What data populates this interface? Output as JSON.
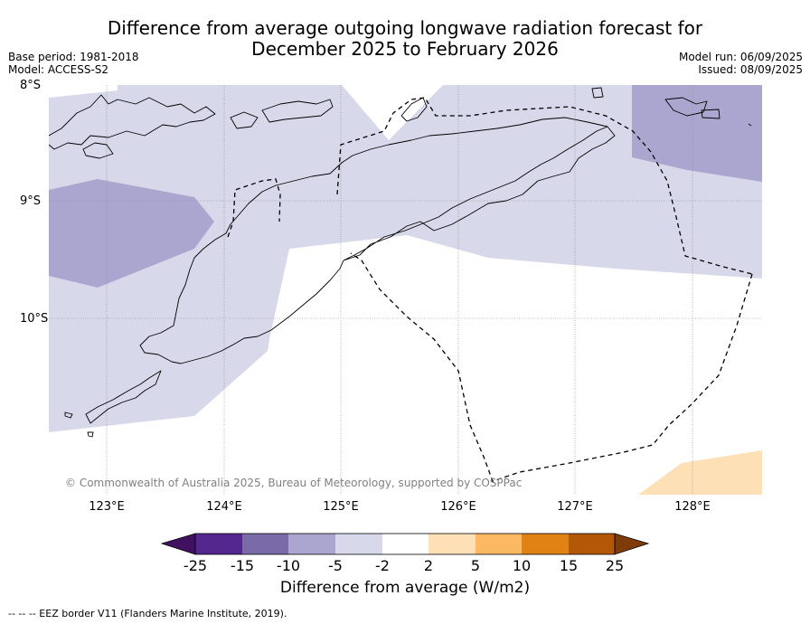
{
  "title_line1": "Difference from average outgoing longwave radiation forecast for",
  "title_line2": "December 2025 to February 2026",
  "base_period": "Base period: 1981-2018",
  "model": "Model: ACCESS-S2",
  "model_run": "Model run: 06/09/2025",
  "issued": "Issued: 08/09/2025",
  "latitude_labels": [
    "8°S",
    "9°S",
    "10°S"
  ],
  "longitude_labels": [
    "123°E",
    "124°E",
    "125°E",
    "126°E",
    "127°E",
    "128°E"
  ],
  "copyright": "© Commonwealth of Australia 2025, Bureau of Meteorology, supported by COSPPac",
  "colorbar": {
    "ticks": [
      "-25",
      "-15",
      "-10",
      "-5",
      "-2",
      "2",
      "5",
      "10",
      "15",
      "25"
    ],
    "colors": [
      "#3f1160",
      "#54278f",
      "#7b6aa8",
      "#aba6cf",
      "#d7d8ea",
      "#ffffff",
      "#fee0b6",
      "#fdb863",
      "#e08214",
      "#b35806",
      "#7f3b08"
    ],
    "title": "Difference from average (W/m2)"
  },
  "footnote": "--  --  -- EEZ border V11 (Flanders Marine Institute, 2019).",
  "map": {
    "extent_lon": [
      122.5,
      128.6
    ],
    "extent_lat": [
      -11.5,
      -8.0
    ],
    "regions": [
      {
        "class": "-5 to -2",
        "color": "#d7d8ea"
      },
      {
        "class": "-10 to -5",
        "color": "#aba6cf"
      },
      {
        "class": "2 to 5",
        "color": "#fee0b6"
      }
    ]
  }
}
